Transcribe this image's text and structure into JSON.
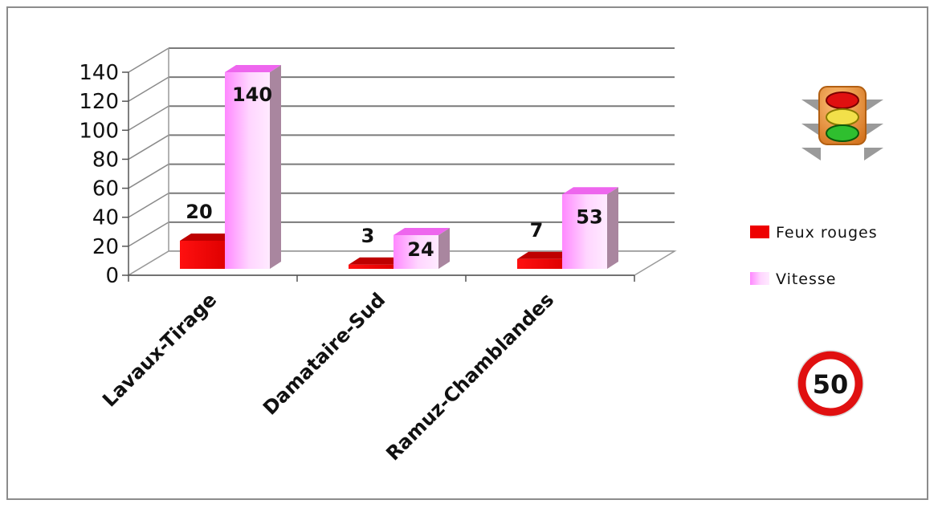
{
  "chart_data": {
    "type": "bar",
    "three_d": true,
    "categories": [
      "Lavaux-Tirage",
      "Damataire-Sud",
      "Ramuz-Chamblandes"
    ],
    "series": [
      {
        "name": "Feux rouges",
        "values": [
          20,
          3,
          7
        ],
        "color": "#ee0000"
      },
      {
        "name": "Vitesse",
        "values": [
          140,
          24,
          53
        ],
        "color": "#ff99ff"
      }
    ],
    "ylim": [
      0,
      140
    ],
    "yticks": [
      0,
      20,
      40,
      60,
      80,
      100,
      120,
      140
    ],
    "grid": true,
    "legend_position": "right"
  },
  "icons": {
    "traffic_light": "traffic-light-icon",
    "speed_sign": "speed-limit-sign",
    "speed_sign_text": "50"
  }
}
